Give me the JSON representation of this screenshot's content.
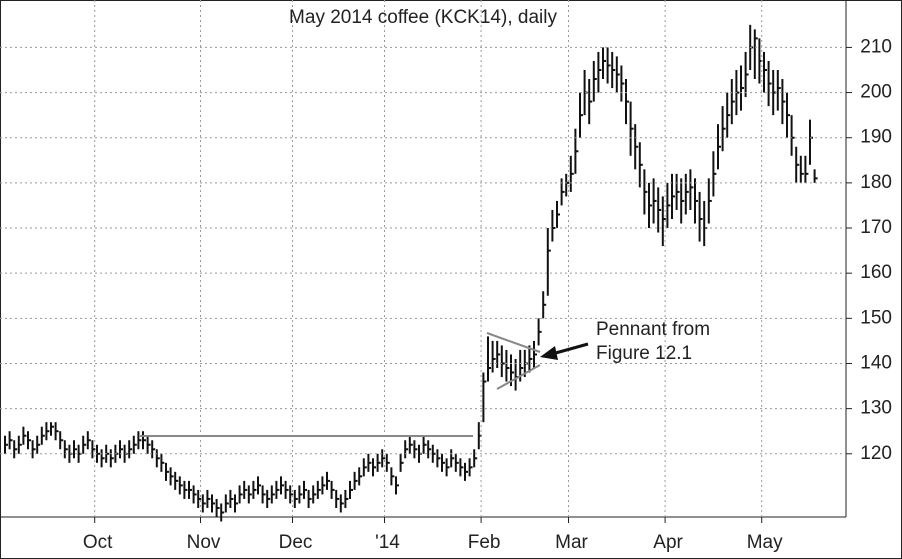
{
  "chart_data": {
    "type": "ohlc",
    "title": "May 2014 coffee (KCK14), daily",
    "categories": [
      null,
      null,
      null,
      null,
      null,
      null,
      null,
      null,
      null,
      null,
      null,
      null,
      null,
      null,
      null,
      null,
      null,
      null,
      null,
      null,
      "Oct",
      null,
      null,
      null,
      null,
      null,
      null,
      null,
      null,
      null,
      null,
      null,
      null,
      null,
      null,
      null,
      null,
      null,
      null,
      null,
      null,
      null,
      null,
      "Nov",
      null,
      null,
      null,
      null,
      null,
      null,
      null,
      null,
      null,
      null,
      null,
      null,
      null,
      null,
      null,
      null,
      null,
      null,
      null,
      "Dec",
      null,
      null,
      null,
      null,
      null,
      null,
      null,
      null,
      null,
      null,
      null,
      null,
      null,
      null,
      null,
      null,
      null,
      null,
      null,
      "'14",
      null,
      null,
      null,
      null,
      null,
      null,
      null,
      null,
      null,
      null,
      null,
      null,
      null,
      null,
      null,
      null,
      null,
      null,
      null,
      null,
      "Feb",
      null,
      null,
      null,
      null,
      null,
      null,
      null,
      null,
      null,
      null,
      null,
      null,
      null,
      null,
      null,
      null,
      null,
      null,
      "Mar",
      null,
      null,
      null,
      null,
      null,
      null,
      null,
      null,
      null,
      null,
      null,
      null,
      null,
      null,
      null,
      null,
      null,
      null,
      null,
      null,
      "Apr",
      null,
      null,
      null,
      null,
      null,
      null,
      null,
      null,
      null,
      null,
      null,
      null,
      null,
      null,
      null,
      null,
      null,
      null,
      null,
      null,
      "May",
      null,
      null,
      null,
      null,
      null,
      null,
      null,
      null,
      null,
      null,
      null
    ],
    "high": [
      124,
      125,
      123,
      124,
      126,
      125,
      123,
      124,
      126,
      127,
      127,
      127,
      125,
      123,
      122,
      123,
      122,
      124,
      125,
      123,
      122,
      121,
      122,
      121,
      122,
      123,
      122,
      123,
      124,
      125,
      125,
      124,
      123,
      121,
      120,
      118,
      117,
      116,
      115,
      114,
      114,
      113,
      112,
      111,
      112,
      111,
      110,
      109,
      111,
      112,
      111,
      113,
      114,
      113,
      114,
      115,
      113,
      112,
      113,
      114,
      115,
      114,
      113,
      112,
      113,
      114,
      112,
      113,
      114,
      115,
      116,
      114,
      112,
      111,
      112,
      114,
      116,
      117,
      119,
      120,
      119,
      120,
      121,
      120,
      117,
      115,
      120,
      123,
      124,
      123,
      122,
      124,
      123,
      122,
      121,
      120,
      119,
      121,
      120,
      119,
      118,
      119,
      121,
      127,
      138,
      146,
      145,
      145,
      144,
      143,
      142,
      141,
      143,
      143,
      144,
      145,
      150,
      156,
      170,
      174,
      176,
      181,
      182,
      186,
      192,
      200,
      205,
      203,
      207,
      209,
      210,
      210,
      209,
      208,
      206,
      203,
      198,
      193,
      189,
      183,
      180,
      181,
      179,
      177,
      180,
      182,
      182,
      181,
      182,
      183,
      181,
      178,
      176,
      181,
      187,
      193,
      197,
      200,
      203,
      205,
      206,
      209,
      215,
      214,
      212,
      209,
      207,
      205,
      205,
      203,
      200,
      195,
      188,
      186,
      186,
      194,
      183
    ],
    "low": [
      120,
      121,
      119,
      120,
      122,
      121,
      119,
      120,
      122,
      123,
      124,
      123,
      121,
      119,
      118,
      119,
      118,
      120,
      121,
      119,
      118,
      117,
      118,
      117,
      118,
      119,
      118,
      119,
      120,
      121,
      121,
      120,
      119,
      117,
      116,
      114,
      113,
      112,
      111,
      110,
      110,
      109,
      108,
      107,
      108,
      107,
      106,
      105,
      107,
      108,
      107,
      109,
      110,
      109,
      110,
      111,
      109,
      108,
      109,
      110,
      111,
      110,
      109,
      108,
      109,
      110,
      108,
      109,
      110,
      111,
      112,
      110,
      108,
      107,
      108,
      110,
      112,
      113,
      115,
      116,
      115,
      116,
      117,
      116,
      113,
      111,
      116,
      119,
      120,
      119,
      118,
      120,
      119,
      118,
      117,
      116,
      115,
      117,
      116,
      115,
      114,
      115,
      117,
      121,
      127,
      136,
      138,
      139,
      137,
      136,
      135,
      134,
      136,
      137,
      138,
      139,
      144,
      150,
      155,
      167,
      170,
      175,
      177,
      178,
      182,
      190,
      195,
      193,
      198,
      200,
      203,
      202,
      201,
      200,
      198,
      193,
      186,
      183,
      179,
      173,
      170,
      171,
      169,
      166,
      170,
      172,
      174,
      171,
      173,
      174,
      171,
      167,
      166,
      171,
      177,
      183,
      187,
      190,
      193,
      195,
      196,
      199,
      205,
      203,
      202,
      200,
      197,
      195,
      196,
      193,
      190,
      186,
      180,
      180,
      180,
      184,
      180
    ],
    "close": [
      122,
      123,
      121,
      122,
      124,
      123,
      121,
      122,
      124,
      125,
      126,
      125,
      123,
      121,
      120,
      121,
      120,
      122,
      123,
      121,
      120,
      119,
      120,
      119,
      120,
      121,
      120,
      121,
      122,
      123,
      123,
      122,
      121,
      119,
      118,
      116,
      115,
      114,
      113,
      112,
      112,
      111,
      110,
      109,
      110,
      109,
      108,
      107,
      109,
      110,
      109,
      111,
      112,
      111,
      112,
      113,
      111,
      110,
      111,
      112,
      113,
      112,
      111,
      110,
      111,
      112,
      110,
      111,
      112,
      113,
      114,
      112,
      110,
      109,
      110,
      112,
      114,
      115,
      117,
      118,
      117,
      118,
      119,
      118,
      115,
      113,
      118,
      121,
      122,
      121,
      120,
      122,
      121,
      120,
      119,
      118,
      117,
      119,
      118,
      117,
      116,
      117,
      119,
      124,
      136,
      139,
      141,
      142,
      140,
      139,
      138,
      137,
      139,
      140,
      141,
      142,
      147,
      153,
      165,
      170,
      173,
      178,
      180,
      182,
      187,
      195,
      200,
      198,
      203,
      205,
      207,
      206,
      205,
      204,
      202,
      198,
      192,
      188,
      184,
      178,
      175,
      176,
      174,
      172,
      175,
      177,
      178,
      176,
      178,
      179,
      176,
      172,
      170,
      176,
      182,
      188,
      192,
      195,
      198,
      200,
      201,
      204,
      210,
      212,
      207,
      205,
      202,
      200,
      201,
      198,
      195,
      190,
      184,
      182,
      182,
      190,
      181
    ],
    "color": "#111111",
    "ylim": [
      106,
      220.5
    ],
    "yticks": [
      120,
      130,
      140,
      150,
      160,
      170,
      180,
      190,
      200,
      210
    ],
    "grid": true,
    "annotation": [
      "Pennant from",
      "Figure 12.1"
    ]
  }
}
